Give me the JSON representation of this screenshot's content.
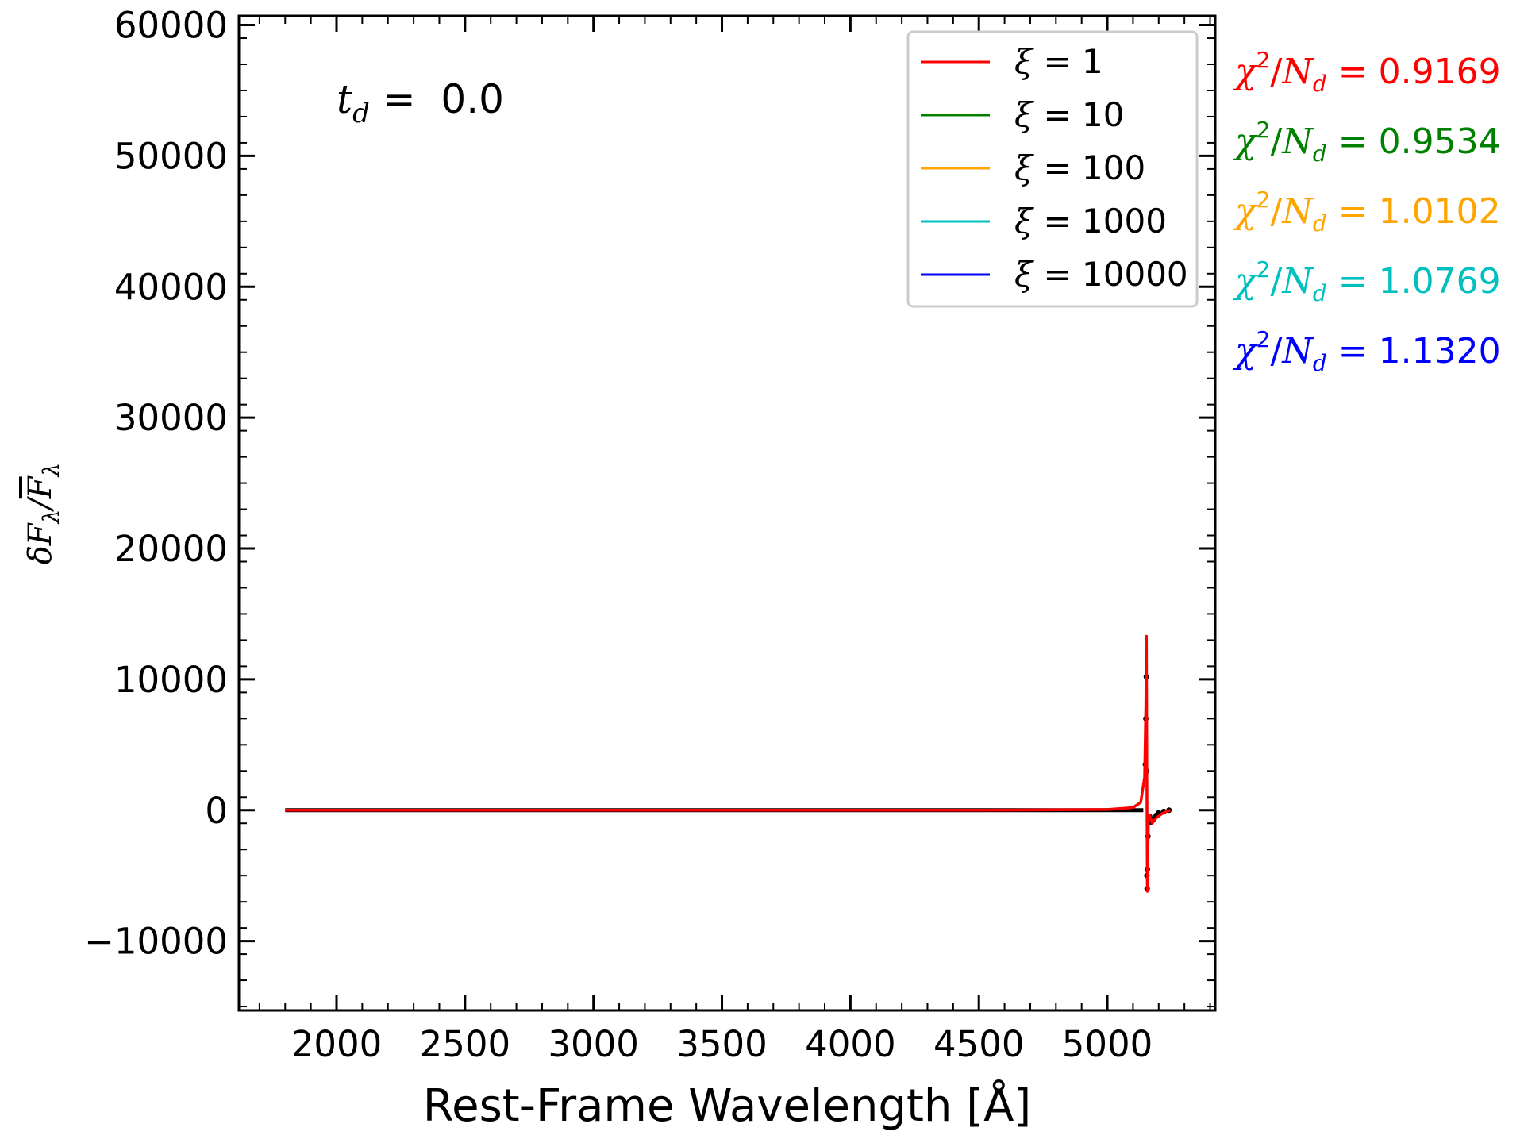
{
  "chart_data": {
    "type": "line",
    "title": "",
    "xlabel": "Rest-Frame Wavelength [Å]",
    "ylabel": "δF_λ/F̄_λ",
    "ylabel_parts": {
      "main": "δF",
      "sub1": "λ",
      "slash": "/",
      "bar": "F",
      "sub2": "λ"
    },
    "xlim": [
      1620,
      5420
    ],
    "ylim": [
      -15300,
      60700
    ],
    "x_ticks": [
      2000,
      2500,
      3000,
      3500,
      4000,
      4500,
      5000
    ],
    "y_ticks": [
      -10000,
      0,
      10000,
      20000,
      30000,
      40000,
      50000,
      60000
    ],
    "x_tick_labels": [
      "2000",
      "2500",
      "3000",
      "3500",
      "4000",
      "4500",
      "5000"
    ],
    "y_tick_labels": [
      "−10000",
      "0",
      "10000",
      "20000",
      "30000",
      "40000",
      "50000",
      "60000"
    ],
    "grid": false,
    "legend_position": "top-right",
    "annotation": {
      "symbol": "t",
      "subscript": "d",
      "text": " =  0.0"
    },
    "series": [
      {
        "name": "ξ = 1",
        "symbol": "ξ",
        "label": " = 1",
        "color": "#ff0000",
        "x": [
          1800,
          3000,
          4500,
          5000,
          5100,
          5130,
          5145,
          5150,
          5152,
          5154,
          5156,
          5158,
          5160,
          5165,
          5175,
          5190,
          5210,
          5230,
          5245
        ],
        "y": [
          0,
          0,
          0,
          50,
          200,
          600,
          2500,
          8000,
          13300,
          2000,
          -6200,
          -3000,
          -800,
          -400,
          -1000,
          -600,
          -300,
          -100,
          0
        ]
      },
      {
        "name": "ξ = 10",
        "symbol": "ξ",
        "label": " = 10",
        "color": "#008000",
        "x": [],
        "y": []
      },
      {
        "name": "ξ = 100",
        "symbol": "ξ",
        "label": " = 100",
        "color": "#ffa500",
        "x": [],
        "y": []
      },
      {
        "name": "ξ = 1000",
        "symbol": "ξ",
        "label": " = 1000",
        "color": "#00bfbf",
        "x": [],
        "y": []
      },
      {
        "name": "ξ = 10000",
        "symbol": "ξ",
        "label": " = 10000",
        "color": "#0000ff",
        "x": [],
        "y": []
      }
    ],
    "observed_points": {
      "color": "#000000",
      "x": [
        5148,
        5150,
        5152,
        5153,
        5154,
        5155,
        5156,
        5158,
        5160,
        5165,
        5170,
        5180,
        5190,
        5200,
        5220,
        5240
      ],
      "y": [
        3500,
        7000,
        10200,
        3000,
        -5000,
        -6000,
        -4500,
        -2000,
        -900,
        -500,
        -900,
        -700,
        -400,
        -200,
        -100,
        0
      ]
    },
    "side_annotations": [
      {
        "label": "χ",
        "exp": "2",
        "slash": "/",
        "n": "N",
        "sub": "d",
        "value": " = 0.9169",
        "color": "#ff0000"
      },
      {
        "label": "χ",
        "exp": "2",
        "slash": "/",
        "n": "N",
        "sub": "d",
        "value": " = 0.9534",
        "color": "#008000"
      },
      {
        "label": "χ",
        "exp": "2",
        "slash": "/",
        "n": "N",
        "sub": "d",
        "value": " = 1.0102",
        "color": "#ffa500"
      },
      {
        "label": "χ",
        "exp": "2",
        "slash": "/",
        "n": "N",
        "sub": "d",
        "value": " = 1.0769",
        "color": "#00bfbf"
      },
      {
        "label": "χ",
        "exp": "2",
        "slash": "/",
        "n": "N",
        "sub": "d",
        "value": " = 1.1320",
        "color": "#0000ff"
      }
    ]
  }
}
